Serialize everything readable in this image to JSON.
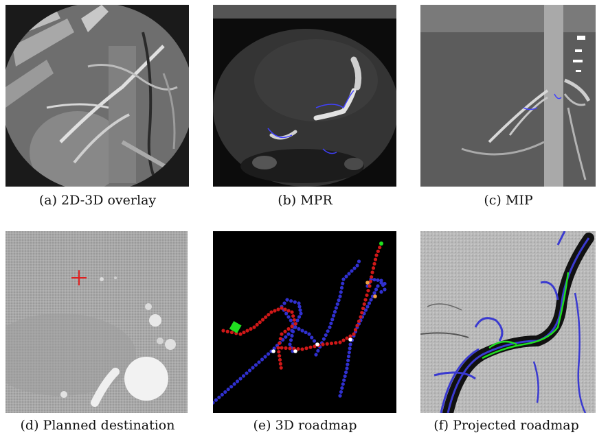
{
  "figure": {
    "panels": [
      {
        "id": "a",
        "caption": "(a) 2D-3D overlay"
      },
      {
        "id": "b",
        "caption": "(b) MPR"
      },
      {
        "id": "c",
        "caption": "(c) MIP"
      },
      {
        "id": "d",
        "caption": "(d) Planned destination"
      },
      {
        "id": "e",
        "caption": "(e) 3D roadmap"
      },
      {
        "id": "f",
        "caption": "(f) Projected roadmap"
      }
    ]
  },
  "colors": {
    "vessel_overlay": "#4040ff",
    "roadmap_blue": "#3030d0",
    "roadmap_red": "#d01818",
    "roadmap_green": "#20e020",
    "target_marker": "#e02020"
  }
}
